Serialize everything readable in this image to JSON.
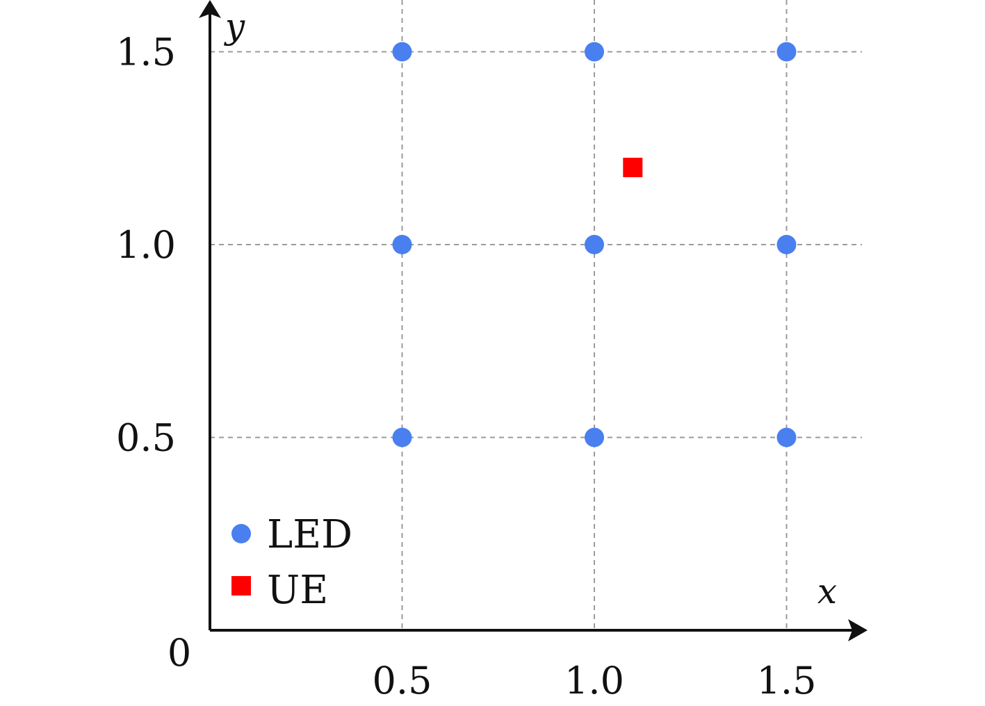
{
  "chart_data": {
    "type": "scatter",
    "xlabel": "x",
    "ylabel": "y",
    "origin_label": "0",
    "xlim": [
      0,
      1.7
    ],
    "ylim": [
      0,
      1.6
    ],
    "xticks": [
      {
        "value": 0.5,
        "label": "0.5"
      },
      {
        "value": 1.0,
        "label": "1.0"
      },
      {
        "value": 1.5,
        "label": "1.5"
      }
    ],
    "yticks": [
      {
        "value": 0.5,
        "label": "0.5"
      },
      {
        "value": 1.0,
        "label": "1.0"
      },
      {
        "value": 1.5,
        "label": "1.5"
      }
    ],
    "grid": true,
    "legend_position": "bottom-left",
    "series": [
      {
        "name": "LED",
        "marker": "circle",
        "color": "#4a7ff0",
        "points": [
          {
            "x": 0.5,
            "y": 0.5
          },
          {
            "x": 1.0,
            "y": 0.5
          },
          {
            "x": 1.5,
            "y": 0.5
          },
          {
            "x": 0.5,
            "y": 1.0
          },
          {
            "x": 1.0,
            "y": 1.0
          },
          {
            "x": 1.5,
            "y": 1.0
          },
          {
            "x": 0.5,
            "y": 1.5
          },
          {
            "x": 1.0,
            "y": 1.5
          },
          {
            "x": 1.5,
            "y": 1.5
          }
        ]
      },
      {
        "name": "UE",
        "marker": "square",
        "color": "#ff0000",
        "points": [
          {
            "x": 1.1,
            "y": 1.2
          }
        ]
      }
    ]
  }
}
